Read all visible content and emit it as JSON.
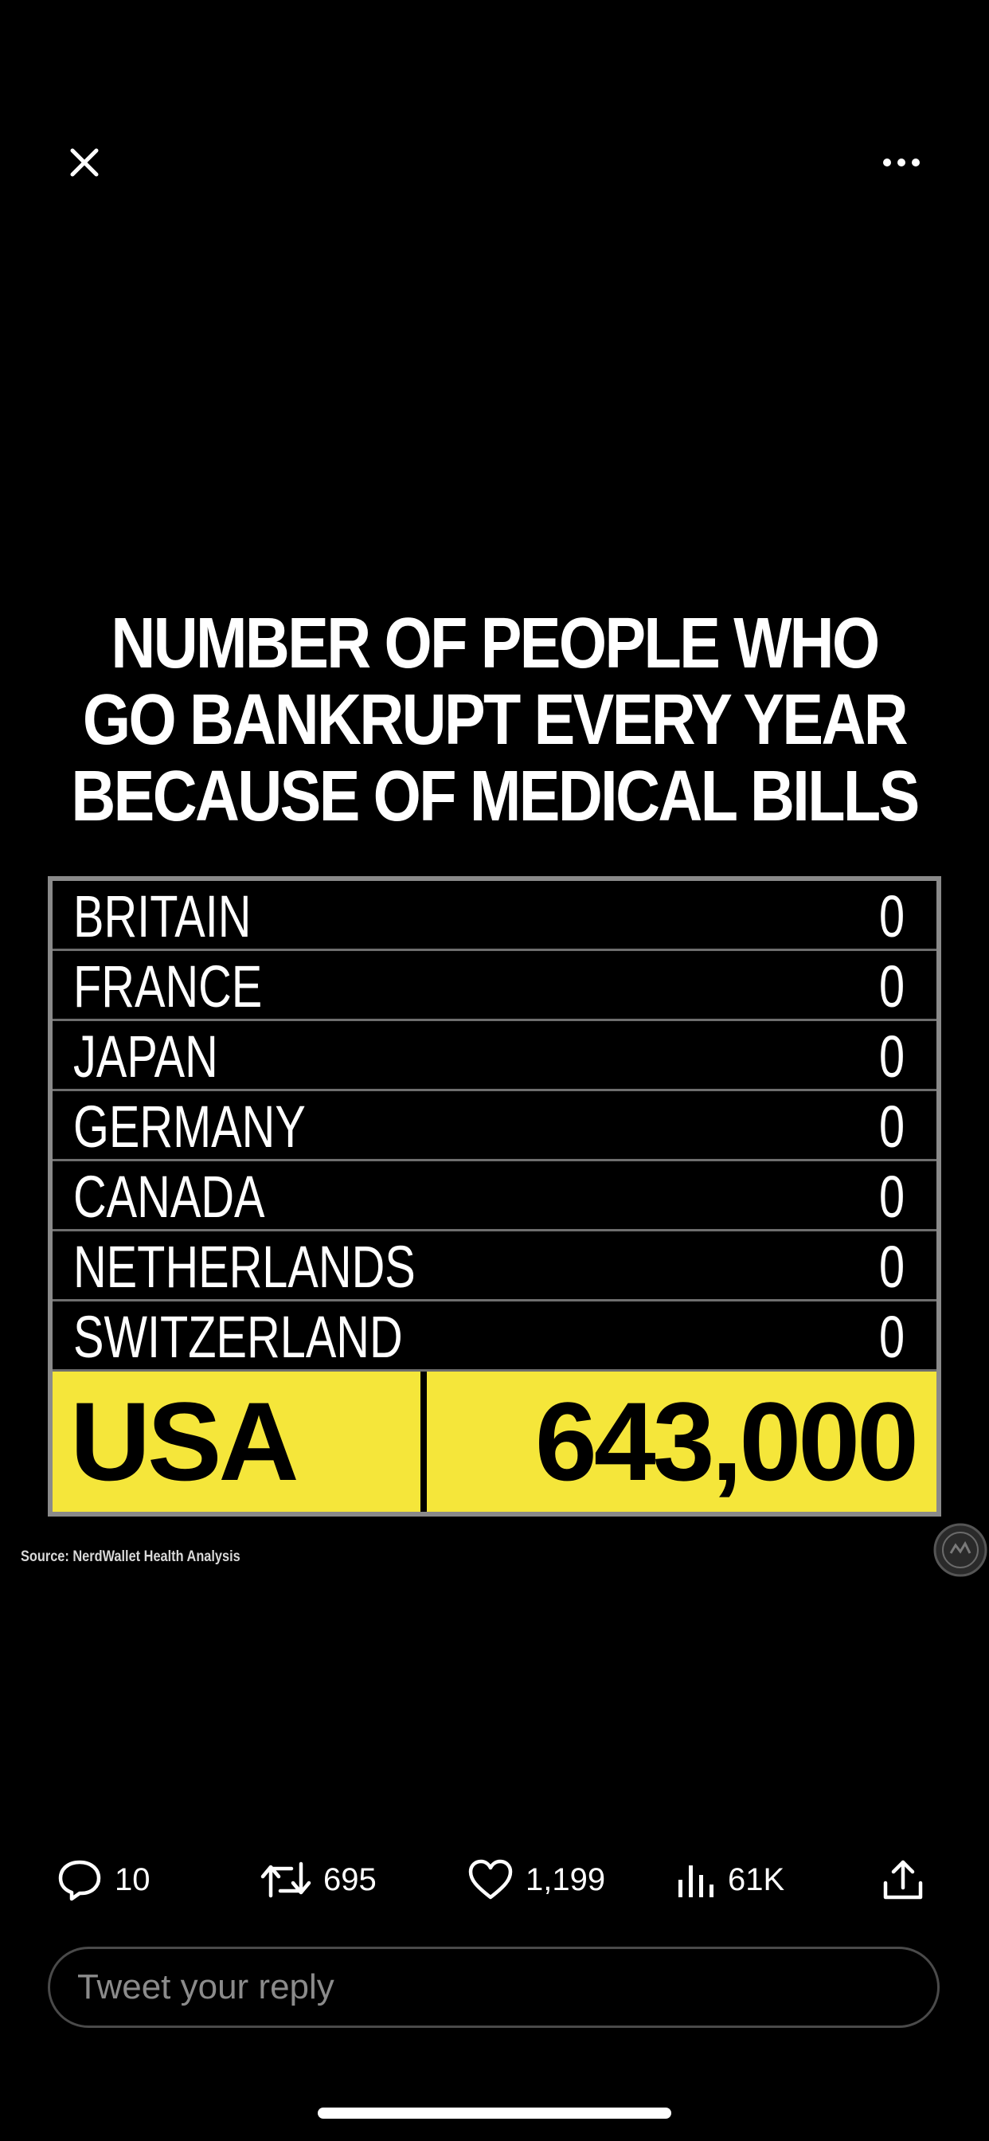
{
  "top_bar": {
    "close_icon": "close-icon",
    "more_icon": "more-horizontal-icon"
  },
  "infographic": {
    "title_lines": [
      "NUMBER OF PEOPLE WHO",
      "GO BANKRUPT EVERY YEAR",
      "BECAUSE OF MEDICAL BILLS"
    ],
    "rows": [
      {
        "country": "BRITAIN",
        "value": "0"
      },
      {
        "country": "FRANCE",
        "value": "0"
      },
      {
        "country": "JAPAN",
        "value": "0"
      },
      {
        "country": "GERMANY",
        "value": "0"
      },
      {
        "country": "CANADA",
        "value": "0"
      },
      {
        "country": "NETHERLANDS",
        "value": "0"
      },
      {
        "country": "SWITZERLAND",
        "value": "0"
      }
    ],
    "highlight": {
      "country": "USA",
      "value": "643,000"
    },
    "highlight_color": "#f5e63a",
    "source": "Source: NerdWallet Health Analysis"
  },
  "actions": {
    "reply": {
      "icon": "reply-icon",
      "count": "10"
    },
    "retweet": {
      "icon": "retweet-icon",
      "count": "695"
    },
    "like": {
      "icon": "heart-icon",
      "count": "1,199"
    },
    "views": {
      "icon": "views-icon",
      "count": "61K"
    },
    "share": {
      "icon": "share-icon"
    }
  },
  "reply_box": {
    "placeholder": "Tweet your reply"
  }
}
